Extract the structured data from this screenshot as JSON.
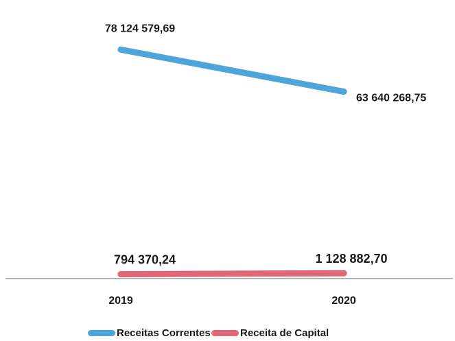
{
  "chart_data": {
    "type": "line",
    "title": "",
    "xlabel": "",
    "ylabel": "",
    "categories": [
      "2019",
      "2020"
    ],
    "series": [
      {
        "name": "Receitas Correntes",
        "color": "#4ea5d9",
        "values": [
          78124579.69,
          63640268.75
        ],
        "labels": [
          "78 124 579,69",
          "63 640 268,75"
        ]
      },
      {
        "name": "Receita de Capital",
        "color": "#e06777",
        "values": [
          794370.24,
          1128882.7
        ],
        "labels": [
          "794 370,24",
          "1 128 882,70"
        ]
      }
    ],
    "ylim": [
      0,
      90000000
    ],
    "grid": false,
    "legend": "bottom"
  }
}
